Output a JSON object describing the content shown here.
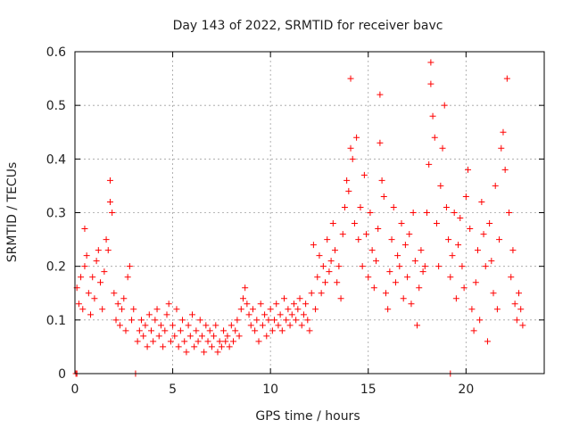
{
  "chart_data": {
    "type": "scatter",
    "title": "Day 143 of 2022, SRMTID for receiver bavc",
    "xlabel": "GPS time / hours",
    "ylabel": "SRMTID / TECUs",
    "xlim": [
      0,
      24
    ],
    "ylim": [
      0,
      0.6
    ],
    "xticks": [
      0,
      5,
      10,
      15,
      20
    ],
    "xtick_labels": [
      "0",
      "5",
      "10",
      "15",
      "20"
    ],
    "yticks": [
      0,
      0.1,
      0.2,
      0.3,
      0.4,
      0.5,
      0.6
    ],
    "ytick_labels": [
      "0",
      "0.1",
      "0.2",
      "0.3",
      "0.4",
      "0.5",
      "0.6"
    ],
    "grid": true,
    "marker": "+",
    "series": [
      {
        "name": "bavc",
        "color": "#ff0000",
        "points": [
          [
            0.05,
            0.0
          ],
          [
            0.1,
            0.0
          ],
          [
            3.1,
            0.0
          ],
          [
            19.2,
            0.0
          ],
          [
            0.1,
            0.16
          ],
          [
            0.2,
            0.13
          ],
          [
            0.3,
            0.18
          ],
          [
            0.4,
            0.12
          ],
          [
            0.5,
            0.2
          ],
          [
            0.5,
            0.27
          ],
          [
            0.6,
            0.22
          ],
          [
            0.7,
            0.15
          ],
          [
            0.8,
            0.11
          ],
          [
            0.9,
            0.18
          ],
          [
            1.0,
            0.14
          ],
          [
            1.1,
            0.21
          ],
          [
            1.2,
            0.23
          ],
          [
            1.3,
            0.17
          ],
          [
            1.4,
            0.12
          ],
          [
            1.5,
            0.19
          ],
          [
            1.6,
            0.25
          ],
          [
            1.7,
            0.23
          ],
          [
            1.8,
            0.36
          ],
          [
            1.8,
            0.32
          ],
          [
            1.9,
            0.3
          ],
          [
            2.0,
            0.15
          ],
          [
            2.1,
            0.1
          ],
          [
            2.2,
            0.13
          ],
          [
            2.3,
            0.09
          ],
          [
            2.4,
            0.12
          ],
          [
            2.5,
            0.14
          ],
          [
            2.6,
            0.08
          ],
          [
            2.7,
            0.18
          ],
          [
            2.8,
            0.2
          ],
          [
            2.9,
            0.1
          ],
          [
            3.0,
            0.12
          ],
          [
            3.2,
            0.06
          ],
          [
            3.3,
            0.08
          ],
          [
            3.4,
            0.1
          ],
          [
            3.5,
            0.07
          ],
          [
            3.6,
            0.09
          ],
          [
            3.7,
            0.05
          ],
          [
            3.8,
            0.11
          ],
          [
            3.9,
            0.08
          ],
          [
            4.0,
            0.06
          ],
          [
            4.1,
            0.1
          ],
          [
            4.2,
            0.12
          ],
          [
            4.3,
            0.07
          ],
          [
            4.4,
            0.09
          ],
          [
            4.5,
            0.05
          ],
          [
            4.6,
            0.08
          ],
          [
            4.7,
            0.11
          ],
          [
            4.8,
            0.13
          ],
          [
            4.9,
            0.06
          ],
          [
            5.0,
            0.09
          ],
          [
            5.1,
            0.07
          ],
          [
            5.2,
            0.12
          ],
          [
            5.3,
            0.05
          ],
          [
            5.4,
            0.08
          ],
          [
            5.5,
            0.1
          ],
          [
            5.6,
            0.06
          ],
          [
            5.7,
            0.04
          ],
          [
            5.8,
            0.09
          ],
          [
            5.9,
            0.07
          ],
          [
            6.0,
            0.11
          ],
          [
            6.1,
            0.05
          ],
          [
            6.2,
            0.08
          ],
          [
            6.3,
            0.06
          ],
          [
            6.4,
            0.1
          ],
          [
            6.5,
            0.07
          ],
          [
            6.6,
            0.04
          ],
          [
            6.7,
            0.09
          ],
          [
            6.8,
            0.06
          ],
          [
            6.9,
            0.08
          ],
          [
            7.0,
            0.05
          ],
          [
            7.1,
            0.07
          ],
          [
            7.2,
            0.09
          ],
          [
            7.3,
            0.04
          ],
          [
            7.4,
            0.06
          ],
          [
            7.5,
            0.05
          ],
          [
            7.6,
            0.08
          ],
          [
            7.7,
            0.06
          ],
          [
            7.8,
            0.07
          ],
          [
            7.9,
            0.05
          ],
          [
            8.0,
            0.09
          ],
          [
            8.1,
            0.06
          ],
          [
            8.2,
            0.08
          ],
          [
            8.3,
            0.1
          ],
          [
            8.4,
            0.07
          ],
          [
            8.5,
            0.12
          ],
          [
            8.6,
            0.14
          ],
          [
            8.7,
            0.16
          ],
          [
            8.8,
            0.13
          ],
          [
            8.9,
            0.11
          ],
          [
            9.0,
            0.09
          ],
          [
            9.1,
            0.12
          ],
          [
            9.2,
            0.08
          ],
          [
            9.3,
            0.1
          ],
          [
            9.4,
            0.06
          ],
          [
            9.5,
            0.13
          ],
          [
            9.6,
            0.09
          ],
          [
            9.7,
            0.11
          ],
          [
            9.8,
            0.07
          ],
          [
            9.9,
            0.1
          ],
          [
            10.0,
            0.12
          ],
          [
            10.1,
            0.08
          ],
          [
            10.2,
            0.1
          ],
          [
            10.3,
            0.13
          ],
          [
            10.4,
            0.09
          ],
          [
            10.5,
            0.11
          ],
          [
            10.6,
            0.08
          ],
          [
            10.7,
            0.14
          ],
          [
            10.8,
            0.1
          ],
          [
            10.9,
            0.12
          ],
          [
            11.0,
            0.09
          ],
          [
            11.1,
            0.11
          ],
          [
            11.2,
            0.13
          ],
          [
            11.3,
            0.1
          ],
          [
            11.4,
            0.12
          ],
          [
            11.5,
            0.14
          ],
          [
            11.6,
            0.09
          ],
          [
            11.7,
            0.11
          ],
          [
            11.8,
            0.13
          ],
          [
            11.9,
            0.1
          ],
          [
            12.0,
            0.08
          ],
          [
            12.1,
            0.15
          ],
          [
            12.2,
            0.24
          ],
          [
            12.3,
            0.12
          ],
          [
            12.4,
            0.18
          ],
          [
            12.5,
            0.22
          ],
          [
            12.6,
            0.15
          ],
          [
            12.7,
            0.2
          ],
          [
            12.8,
            0.17
          ],
          [
            12.9,
            0.25
          ],
          [
            13.0,
            0.19
          ],
          [
            13.1,
            0.21
          ],
          [
            13.2,
            0.28
          ],
          [
            13.3,
            0.23
          ],
          [
            13.4,
            0.17
          ],
          [
            13.5,
            0.2
          ],
          [
            13.6,
            0.14
          ],
          [
            13.7,
            0.26
          ],
          [
            13.8,
            0.31
          ],
          [
            13.9,
            0.36
          ],
          [
            14.0,
            0.34
          ],
          [
            14.1,
            0.42
          ],
          [
            14.1,
            0.55
          ],
          [
            14.2,
            0.4
          ],
          [
            14.3,
            0.28
          ],
          [
            14.4,
            0.44
          ],
          [
            14.5,
            0.25
          ],
          [
            14.6,
            0.31
          ],
          [
            14.7,
            0.2
          ],
          [
            14.8,
            0.37
          ],
          [
            14.9,
            0.26
          ],
          [
            15.0,
            0.18
          ],
          [
            15.1,
            0.3
          ],
          [
            15.2,
            0.23
          ],
          [
            15.3,
            0.16
          ],
          [
            15.4,
            0.21
          ],
          [
            15.5,
            0.27
          ],
          [
            15.6,
            0.43
          ],
          [
            15.6,
            0.52
          ],
          [
            15.7,
            0.36
          ],
          [
            15.8,
            0.33
          ],
          [
            15.9,
            0.15
          ],
          [
            16.0,
            0.12
          ],
          [
            16.1,
            0.19
          ],
          [
            16.2,
            0.25
          ],
          [
            16.3,
            0.31
          ],
          [
            16.4,
            0.17
          ],
          [
            16.5,
            0.22
          ],
          [
            16.6,
            0.2
          ],
          [
            16.7,
            0.28
          ],
          [
            16.8,
            0.14
          ],
          [
            16.9,
            0.24
          ],
          [
            17.0,
            0.18
          ],
          [
            17.1,
            0.26
          ],
          [
            17.2,
            0.13
          ],
          [
            17.3,
            0.3
          ],
          [
            17.4,
            0.21
          ],
          [
            17.5,
            0.09
          ],
          [
            17.6,
            0.16
          ],
          [
            17.7,
            0.23
          ],
          [
            17.8,
            0.19
          ],
          [
            17.9,
            0.2
          ],
          [
            18.0,
            0.3
          ],
          [
            18.1,
            0.39
          ],
          [
            18.2,
            0.58
          ],
          [
            18.2,
            0.54
          ],
          [
            18.3,
            0.48
          ],
          [
            18.4,
            0.44
          ],
          [
            18.5,
            0.28
          ],
          [
            18.6,
            0.2
          ],
          [
            18.7,
            0.35
          ],
          [
            18.8,
            0.42
          ],
          [
            18.9,
            0.5
          ],
          [
            19.0,
            0.31
          ],
          [
            19.1,
            0.25
          ],
          [
            19.2,
            0.18
          ],
          [
            19.3,
            0.22
          ],
          [
            19.4,
            0.3
          ],
          [
            19.5,
            0.14
          ],
          [
            19.6,
            0.24
          ],
          [
            19.7,
            0.29
          ],
          [
            19.8,
            0.2
          ],
          [
            19.9,
            0.16
          ],
          [
            20.0,
            0.33
          ],
          [
            20.1,
            0.38
          ],
          [
            20.2,
            0.27
          ],
          [
            20.3,
            0.12
          ],
          [
            20.4,
            0.08
          ],
          [
            20.5,
            0.17
          ],
          [
            20.6,
            0.23
          ],
          [
            20.7,
            0.1
          ],
          [
            20.8,
            0.32
          ],
          [
            20.9,
            0.26
          ],
          [
            21.0,
            0.2
          ],
          [
            21.1,
            0.06
          ],
          [
            21.2,
            0.28
          ],
          [
            21.3,
            0.21
          ],
          [
            21.4,
            0.15
          ],
          [
            21.5,
            0.35
          ],
          [
            21.6,
            0.12
          ],
          [
            21.7,
            0.25
          ],
          [
            21.8,
            0.42
          ],
          [
            21.9,
            0.45
          ],
          [
            22.0,
            0.38
          ],
          [
            22.1,
            0.55
          ],
          [
            22.2,
            0.3
          ],
          [
            22.3,
            0.18
          ],
          [
            22.4,
            0.23
          ],
          [
            22.5,
            0.13
          ],
          [
            22.6,
            0.1
          ],
          [
            22.7,
            0.15
          ],
          [
            22.8,
            0.12
          ],
          [
            22.9,
            0.09
          ]
        ]
      }
    ]
  }
}
